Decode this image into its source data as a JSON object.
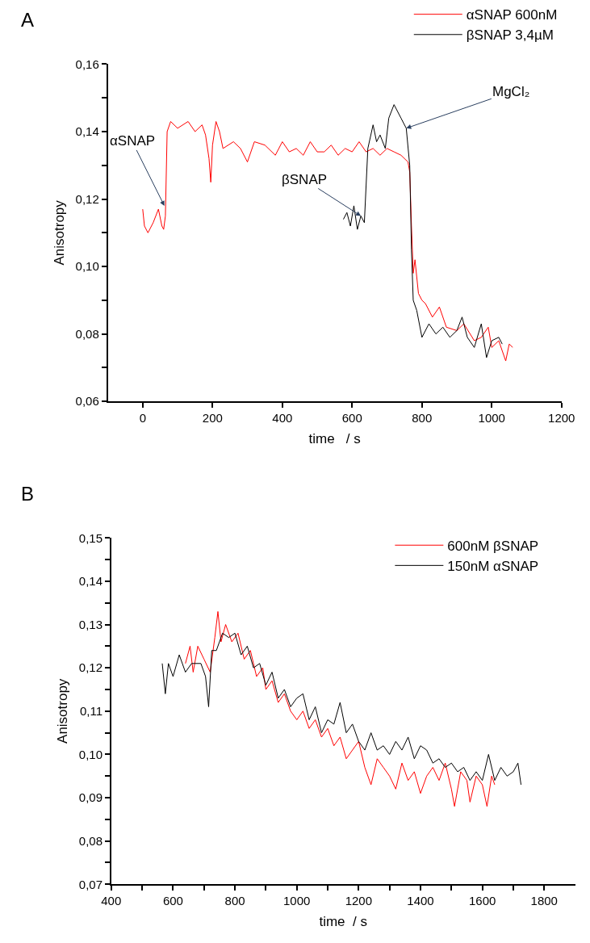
{
  "chart_data": [
    {
      "type": "line",
      "title": "A",
      "xlabel": "time   / s",
      "ylabel": "Anisotropy",
      "xlim": [
        -100,
        1200
      ],
      "xticks": [
        0,
        200,
        400,
        600,
        800,
        1000,
        1200
      ],
      "ylim": [
        0.06,
        0.16
      ],
      "yticks": [
        {
          "value": 0.06,
          "label": "0,06"
        },
        {
          "value": 0.07,
          "label": null
        },
        {
          "value": 0.08,
          "label": "0,08"
        },
        {
          "value": 0.09,
          "label": null
        },
        {
          "value": 0.1,
          "label": "0,10"
        },
        {
          "value": 0.11,
          "label": null
        },
        {
          "value": 0.12,
          "label": "0,12"
        },
        {
          "value": 0.13,
          "label": null
        },
        {
          "value": 0.14,
          "label": "0,14"
        },
        {
          "value": 0.15,
          "label": null
        },
        {
          "value": 0.16,
          "label": "0,16"
        }
      ],
      "legend": "top right",
      "marker": "none",
      "line_style": "solid",
      "annotations": [
        {
          "text": "αSNAP",
          "x": 62,
          "y": 0.118
        },
        {
          "text": "βSNAP",
          "x": 625,
          "y": 0.115
        },
        {
          "text": "MgCl₂",
          "x": 755,
          "y": 0.141
        }
      ],
      "series": [
        {
          "name": "αSNAP 600nM",
          "color": "#ff0000",
          "x": [
            0,
            5,
            15,
            30,
            45,
            55,
            60,
            65,
            70,
            80,
            100,
            130,
            150,
            170,
            180,
            190,
            195,
            200,
            210,
            220,
            230,
            260,
            280,
            300,
            320,
            350,
            380,
            400,
            420,
            440,
            460,
            480,
            500,
            520,
            540,
            560,
            580,
            600,
            620,
            640,
            660,
            680,
            700,
            720,
            740,
            760,
            765,
            770,
            775,
            780,
            790,
            800,
            810,
            830,
            850,
            870,
            900,
            920,
            950,
            970,
            990,
            1000,
            1020,
            1040,
            1050,
            1060
          ],
          "values": [
            0.117,
            0.112,
            0.11,
            0.113,
            0.117,
            0.112,
            0.111,
            0.115,
            0.14,
            0.143,
            0.141,
            0.143,
            0.14,
            0.142,
            0.139,
            0.132,
            0.125,
            0.136,
            0.143,
            0.14,
            0.135,
            0.137,
            0.135,
            0.131,
            0.137,
            0.136,
            0.133,
            0.137,
            0.134,
            0.135,
            0.133,
            0.137,
            0.134,
            0.134,
            0.136,
            0.133,
            0.135,
            0.134,
            0.137,
            0.134,
            0.135,
            0.133,
            0.135,
            0.134,
            0.133,
            0.131,
            0.128,
            0.112,
            0.098,
            0.102,
            0.092,
            0.09,
            0.089,
            0.085,
            0.088,
            0.082,
            0.081,
            0.083,
            0.078,
            0.079,
            0.082,
            0.076,
            0.078,
            0.072,
            0.077,
            0.076
          ]
        },
        {
          "name": "βSNAP 3,4µM",
          "color": "#000000",
          "x": [
            575,
            585,
            595,
            605,
            615,
            625,
            635,
            645,
            660,
            670,
            680,
            695,
            705,
            720,
            740,
            755,
            765,
            770,
            775,
            785,
            800,
            820,
            840,
            860,
            880,
            900,
            915,
            930,
            950,
            970,
            985,
            1000,
            1020,
            1030
          ],
          "values": [
            0.114,
            0.116,
            0.112,
            0.118,
            0.111,
            0.115,
            0.113,
            0.135,
            0.142,
            0.137,
            0.139,
            0.135,
            0.144,
            0.148,
            0.144,
            0.141,
            0.13,
            0.105,
            0.09,
            0.087,
            0.079,
            0.083,
            0.08,
            0.082,
            0.079,
            0.081,
            0.085,
            0.079,
            0.076,
            0.083,
            0.073,
            0.078,
            0.079,
            0.077
          ]
        }
      ]
    },
    {
      "type": "line",
      "title": "B",
      "xlabel": "time  / s",
      "ylabel": "Anisotropy",
      "xlim": [
        400,
        1900
      ],
      "xticks": [
        400,
        {
          "value": 500,
          "label": null
        },
        600,
        {
          "value": 700,
          "label": null
        },
        800,
        {
          "value": 900,
          "label": null
        },
        1000,
        {
          "value": 1100,
          "label": null
        },
        1200,
        {
          "value": 1300,
          "label": null
        },
        1400,
        {
          "value": 1500,
          "label": null
        },
        1600,
        {
          "value": 1700,
          "label": null
        },
        1800
      ],
      "ylim": [
        0.07,
        0.15
      ],
      "yticks": [
        {
          "value": 0.07,
          "label": "0,07"
        },
        {
          "value": 0.075,
          "label": null
        },
        {
          "value": 0.08,
          "label": "0,08"
        },
        {
          "value": 0.085,
          "label": null
        },
        {
          "value": 0.09,
          "label": "0,09"
        },
        {
          "value": 0.095,
          "label": null
        },
        {
          "value": 0.1,
          "label": "0,10"
        },
        {
          "value": 0.105,
          "label": null
        },
        {
          "value": 0.11,
          "label": "0,11"
        },
        {
          "value": 0.115,
          "label": null
        },
        {
          "value": 0.12,
          "label": "0,12"
        },
        {
          "value": 0.125,
          "label": null
        },
        {
          "value": 0.13,
          "label": "0,13"
        },
        {
          "value": 0.135,
          "label": null
        },
        {
          "value": 0.14,
          "label": "0,14"
        },
        {
          "value": 0.145,
          "label": null
        },
        {
          "value": 0.15,
          "label": "0,15"
        }
      ],
      "legend": "top right",
      "marker": "none",
      "line_style": "solid",
      "series": [
        {
          "name": "600nM βSNAP",
          "color": "#ff0000",
          "x": [
            640,
            655,
            665,
            680,
            700,
            720,
            735,
            745,
            755,
            770,
            790,
            810,
            830,
            850,
            870,
            890,
            900,
            920,
            940,
            960,
            980,
            1000,
            1020,
            1040,
            1060,
            1080,
            1100,
            1120,
            1140,
            1160,
            1180,
            1200,
            1220,
            1240,
            1260,
            1280,
            1300,
            1320,
            1340,
            1360,
            1380,
            1400,
            1420,
            1440,
            1460,
            1480,
            1500,
            1510,
            1530,
            1550,
            1560,
            1580,
            1600,
            1615,
            1630,
            1640
          ],
          "values": [
            0.121,
            0.125,
            0.119,
            0.125,
            0.122,
            0.119,
            0.127,
            0.133,
            0.126,
            0.13,
            0.126,
            0.128,
            0.122,
            0.124,
            0.118,
            0.12,
            0.115,
            0.117,
            0.112,
            0.114,
            0.11,
            0.108,
            0.11,
            0.106,
            0.108,
            0.104,
            0.106,
            0.102,
            0.104,
            0.099,
            0.101,
            0.103,
            0.097,
            0.093,
            0.099,
            0.097,
            0.095,
            0.092,
            0.098,
            0.094,
            0.096,
            0.091,
            0.095,
            0.097,
            0.094,
            0.098,
            0.092,
            0.088,
            0.096,
            0.094,
            0.089,
            0.095,
            0.093,
            0.088,
            0.095,
            0.093
          ]
        },
        {
          "name": "150nM αSNAP",
          "color": "#000000",
          "x": [
            565,
            575,
            585,
            600,
            620,
            640,
            660,
            690,
            705,
            715,
            725,
            740,
            760,
            780,
            800,
            820,
            840,
            860,
            880,
            900,
            920,
            940,
            960,
            980,
            1000,
            1020,
            1040,
            1060,
            1080,
            1100,
            1120,
            1140,
            1160,
            1180,
            1200,
            1220,
            1240,
            1260,
            1280,
            1300,
            1320,
            1340,
            1360,
            1380,
            1400,
            1420,
            1440,
            1460,
            1480,
            1500,
            1520,
            1540,
            1560,
            1580,
            1600,
            1620,
            1640,
            1660,
            1680,
            1700,
            1715,
            1725
          ],
          "values": [
            0.121,
            0.114,
            0.121,
            0.118,
            0.123,
            0.119,
            0.121,
            0.121,
            0.118,
            0.111,
            0.124,
            0.124,
            0.128,
            0.127,
            0.128,
            0.123,
            0.125,
            0.12,
            0.121,
            0.116,
            0.119,
            0.113,
            0.115,
            0.111,
            0.113,
            0.114,
            0.108,
            0.111,
            0.105,
            0.108,
            0.107,
            0.112,
            0.105,
            0.107,
            0.103,
            0.101,
            0.105,
            0.101,
            0.102,
            0.1,
            0.103,
            0.101,
            0.104,
            0.099,
            0.102,
            0.101,
            0.098,
            0.099,
            0.097,
            0.098,
            0.096,
            0.097,
            0.094,
            0.096,
            0.094,
            0.1,
            0.094,
            0.097,
            0.095,
            0.096,
            0.098,
            0.093
          ]
        }
      ]
    }
  ]
}
